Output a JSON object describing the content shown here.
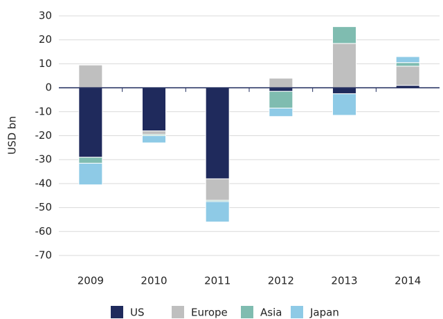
{
  "chart_data": {
    "type": "bar",
    "stacked": true,
    "y_label": "USD bn",
    "categories": [
      "2009",
      "2010",
      "2011",
      "2012",
      "2013",
      "2014"
    ],
    "series": [
      {
        "name": "US",
        "color": "#1f2a5c",
        "values": [
          -29,
          -18,
          -38,
          -1.5,
          -2.5,
          1
        ]
      },
      {
        "name": "Europe",
        "color": "#bfbfbf",
        "values": [
          9.5,
          -1.5,
          -9,
          4,
          18.5,
          8
        ]
      },
      {
        "name": "Asia",
        "color": "#7fbcb0",
        "values": [
          -2.5,
          -0.5,
          -0.5,
          -7,
          7,
          1.5
        ]
      },
      {
        "name": "Japan",
        "color": "#8ecae6",
        "values": [
          -9,
          -3,
          -8.5,
          -3.5,
          -9,
          2.5
        ]
      }
    ],
    "ylim": [
      -70,
      30
    ],
    "yticks": [
      -70,
      -60,
      -50,
      -40,
      -30,
      -20,
      -10,
      0,
      10,
      20,
      30
    ],
    "grid": true,
    "legend": "bottom"
  }
}
